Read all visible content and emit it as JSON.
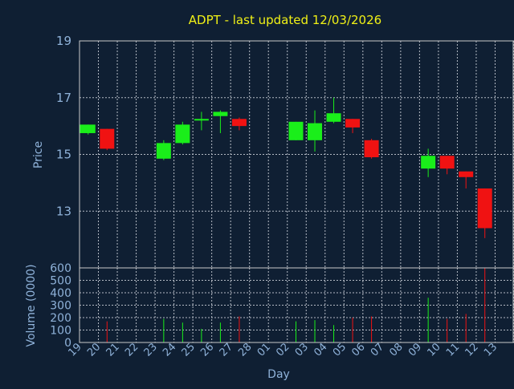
{
  "colors": {
    "background": "#0f1f33",
    "frame": "#c8c8c8",
    "grid": "#b4bac4",
    "title": "#f0f016",
    "label": "#8fb2d9",
    "up": "#1aee1a",
    "down": "#f01212"
  },
  "chart_data": [
    {
      "type": "candlestick",
      "title": "ADPT - last updated 12/03/2026",
      "ylabel": "Price",
      "ylim": [
        11.0,
        19.0
      ],
      "yticks": [
        13,
        15,
        17,
        19
      ],
      "grid": true,
      "x_labels": [
        "19",
        "20",
        "21",
        "22",
        "23",
        "24",
        "25",
        "26",
        "27",
        "28",
        "01",
        "02",
        "03",
        "04",
        "05",
        "06",
        "07",
        "08",
        "09",
        "10",
        "11",
        "12",
        "13"
      ],
      "candles": [
        {
          "day": "19",
          "open": 15.75,
          "high": 16.05,
          "low": 15.7,
          "close": 16.05
        },
        {
          "day": "20",
          "open": 15.9,
          "high": 15.9,
          "low": 15.15,
          "close": 15.2
        },
        {
          "day": "23",
          "open": 14.85,
          "high": 15.5,
          "low": 14.8,
          "close": 15.4
        },
        {
          "day": "24",
          "open": 15.4,
          "high": 16.15,
          "low": 15.35,
          "close": 16.05
        },
        {
          "day": "25",
          "open": 16.2,
          "high": 16.5,
          "low": 15.85,
          "close": 16.25
        },
        {
          "day": "26",
          "open": 16.35,
          "high": 16.55,
          "low": 15.75,
          "close": 16.5
        },
        {
          "day": "27",
          "open": 16.25,
          "high": 16.3,
          "low": 15.85,
          "close": 16.0
        },
        {
          "day": "02",
          "open": 15.5,
          "high": 16.15,
          "low": 15.5,
          "close": 16.15
        },
        {
          "day": "03",
          "open": 15.5,
          "high": 16.55,
          "low": 15.1,
          "close": 16.1
        },
        {
          "day": "04",
          "open": 16.15,
          "high": 17.0,
          "low": 16.1,
          "close": 16.45
        },
        {
          "day": "05",
          "open": 16.25,
          "high": 16.25,
          "low": 15.75,
          "close": 15.95
        },
        {
          "day": "06",
          "open": 15.5,
          "high": 15.55,
          "low": 14.85,
          "close": 14.9
        },
        {
          "day": "09",
          "open": 14.5,
          "high": 15.2,
          "low": 14.2,
          "close": 14.95
        },
        {
          "day": "10",
          "open": 14.95,
          "high": 14.95,
          "low": 14.3,
          "close": 14.5
        },
        {
          "day": "11",
          "open": 14.4,
          "high": 14.4,
          "low": 13.8,
          "close": 14.2
        },
        {
          "day": "12",
          "open": 13.8,
          "high": 13.8,
          "low": 12.05,
          "close": 12.4
        }
      ]
    },
    {
      "type": "bar",
      "ylabel": "Volume (0000)",
      "xlabel": "Day",
      "ylim": [
        0,
        600
      ],
      "yticks": [
        0,
        100,
        200,
        300,
        400,
        500,
        600
      ],
      "grid": true,
      "bars": [
        {
          "day": "20",
          "value": 170,
          "direction": "down"
        },
        {
          "day": "23",
          "value": 190,
          "direction": "up"
        },
        {
          "day": "24",
          "value": 160,
          "direction": "up"
        },
        {
          "day": "25",
          "value": 110,
          "direction": "up"
        },
        {
          "day": "26",
          "value": 160,
          "direction": "up"
        },
        {
          "day": "27",
          "value": 210,
          "direction": "down"
        },
        {
          "day": "02",
          "value": 170,
          "direction": "up"
        },
        {
          "day": "03",
          "value": 180,
          "direction": "up"
        },
        {
          "day": "04",
          "value": 140,
          "direction": "up"
        },
        {
          "day": "05",
          "value": 200,
          "direction": "down"
        },
        {
          "day": "06",
          "value": 210,
          "direction": "down"
        },
        {
          "day": "09",
          "value": 360,
          "direction": "up"
        },
        {
          "day": "10",
          "value": 190,
          "direction": "down"
        },
        {
          "day": "11",
          "value": 230,
          "direction": "down"
        },
        {
          "day": "12",
          "value": 600,
          "direction": "down"
        }
      ]
    }
  ]
}
